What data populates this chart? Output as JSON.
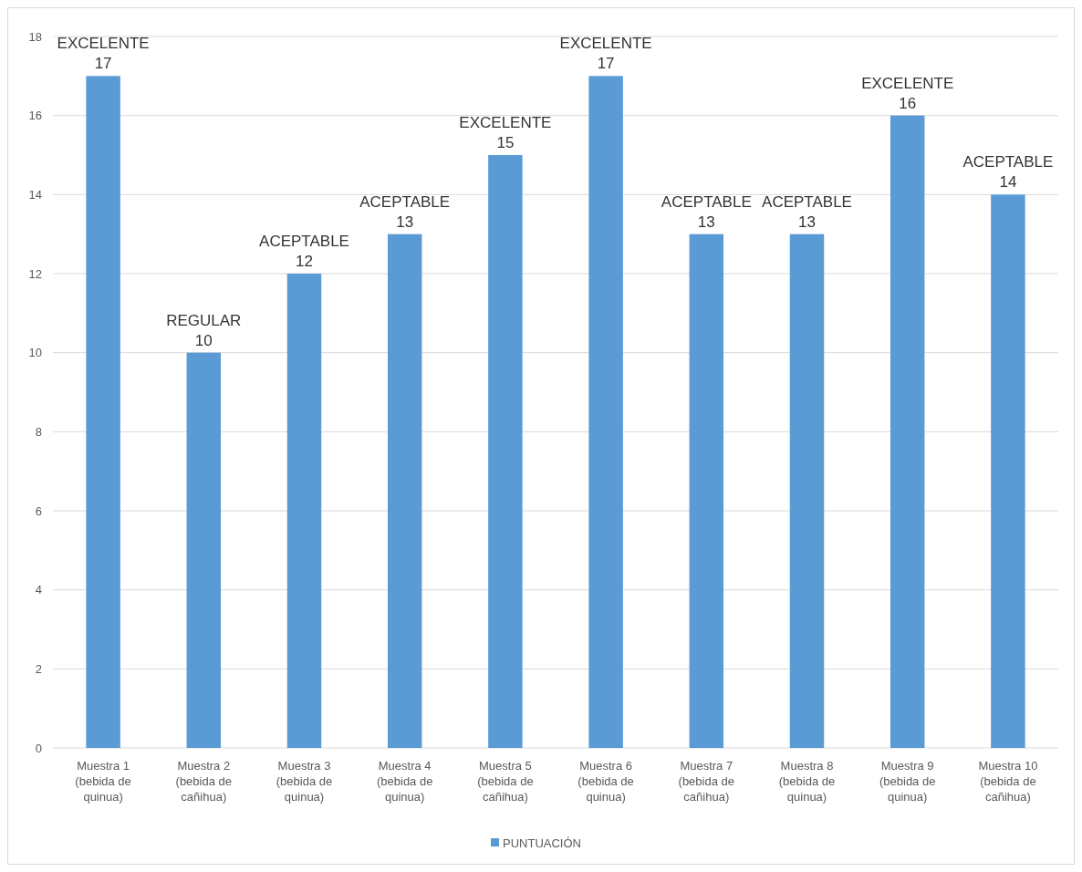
{
  "chart_data": {
    "type": "bar",
    "categories": [
      "Muestra 1 (bebida de quinua)",
      "Muestra 2 (bebida de cañihua)",
      "Muestra 3 (bebida de quinua)",
      "Muestra 4 (bebida de quinua)",
      "Muestra 5 (bebida de cañihua)",
      "Muestra 6 (bebida de quinua)",
      "Muestra 7 (bebida de cañihua)",
      "Muestra 8 (bebida de quinua)",
      "Muestra 9 (bebida de quinua)",
      "Muestra 10 (bebida de cañihua)"
    ],
    "series": [
      {
        "name": "PUNTUACIÓN",
        "color": "#5b9bd5",
        "values": [
          17,
          10,
          12,
          13,
          15,
          17,
          13,
          13,
          16,
          14
        ]
      }
    ],
    "ylim": [
      0,
      18
    ],
    "yticks": [
      0,
      2,
      4,
      6,
      8,
      10,
      12,
      14,
      16,
      18
    ],
    "grid": "y",
    "legend": "bottom",
    "data_labels": true,
    "annotations": [
      {
        "text": "EXCELENTE",
        "x": "Muestra 1 (bebida de quinua)",
        "y": 17
      },
      {
        "text": "REGULAR",
        "x": "Muestra 2 (bebida de cañihua)",
        "y": 10
      },
      {
        "text": "ACEPTABLE",
        "x": "Muestra 3 (bebida de quinua)",
        "y": 12
      },
      {
        "text": "ACEPTABLE",
        "x": "Muestra 4 (bebida de quinua)",
        "y": 13
      },
      {
        "text": "EXCELENTE",
        "x": "Muestra 5 (bebida de cañihua)",
        "y": 15
      },
      {
        "text": "EXCELENTE",
        "x": "Muestra 6 (bebida de quinua)",
        "y": 17
      },
      {
        "text": "ACEPTABLE",
        "x": "Muestra 7 (bebida de cañihua)",
        "y": 13
      },
      {
        "text": "ACEPTABLE",
        "x": "Muestra 8 (bebida de quinua)",
        "y": 13
      },
      {
        "text": "EXCELENTE",
        "x": "Muestra 9 (bebida de quinua)",
        "y": 16
      },
      {
        "text": "ACEPTABLE",
        "x": "Muestra 10 (bebida de cañihua)",
        "y": 14
      }
    ]
  }
}
